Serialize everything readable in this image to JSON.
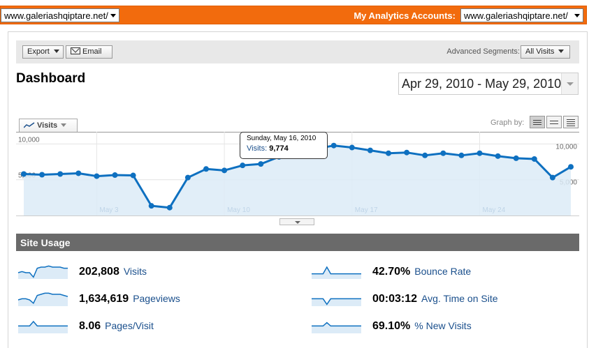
{
  "topbar": {
    "site_select": "www.galeriashqiptare.net/",
    "accounts_label": "My Analytics Accounts:",
    "accounts_select": "www.galeriashqiptare.net/"
  },
  "toolbar": {
    "export_label": "Export",
    "email_label": "Email",
    "segments_label": "Advanced Segments:",
    "segments_value": "All Visits"
  },
  "page": {
    "title": "Dashboard",
    "date_range": "Apr 29, 2010 - May 29, 2010"
  },
  "graph": {
    "metric_tab": "Visits",
    "graph_by_label": "Graph by:",
    "tooltip": {
      "date": "Sunday, May 16, 2010",
      "metric": "Visits:",
      "value": "9,774"
    }
  },
  "chart_data": {
    "type": "area",
    "x": [
      "Apr 29",
      "Apr 30",
      "May 1",
      "May 2",
      "May 3",
      "May 4",
      "May 5",
      "May 6",
      "May 7",
      "May 8",
      "May 9",
      "May 10",
      "May 11",
      "May 12",
      "May 13",
      "May 14",
      "May 15",
      "May 16",
      "May 17",
      "May 18",
      "May 19",
      "May 20",
      "May 21",
      "May 22",
      "May 23",
      "May 24",
      "May 25",
      "May 26",
      "May 27",
      "May 28",
      "May 29"
    ],
    "series": [
      {
        "name": "Visits",
        "values": [
          5800,
          5700,
          5800,
          5900,
          5500,
          5650,
          5600,
          1350,
          1100,
          5300,
          6500,
          6300,
          7000,
          7200,
          8200,
          8600,
          9300,
          9774,
          9500,
          9100,
          8700,
          8800,
          8400,
          8700,
          8400,
          8700,
          8300,
          8000,
          7900,
          5300,
          6800
        ]
      }
    ],
    "ylim": [
      0,
      11500
    ],
    "y_ticks": [
      {
        "value": 10000,
        "label": "10,000"
      },
      {
        "value": 5000,
        "label": "5,000"
      }
    ],
    "x_ticks": [
      {
        "index": 4,
        "label": "May 3"
      },
      {
        "index": 11,
        "label": "May 10"
      },
      {
        "index": 18,
        "label": "May 17"
      },
      {
        "index": 25,
        "label": "May 24"
      }
    ],
    "line_color": "#0e70c0",
    "fill_color": "#dcebf7",
    "grid": true
  },
  "site_usage": {
    "header": "Site Usage",
    "stats": [
      {
        "value": "202,808",
        "label": "Visits",
        "spark": [
          5,
          6,
          5,
          5,
          1,
          9,
          10,
          10,
          11,
          10,
          10,
          10,
          9,
          9
        ]
      },
      {
        "value": "1,634,619",
        "label": "Pageviews",
        "spark": [
          5,
          6,
          6,
          5,
          2,
          9,
          10,
          11,
          11,
          10,
          10,
          10,
          9,
          8
        ]
      },
      {
        "value": "8.06",
        "label": "Pages/Visit",
        "spark": [
          6,
          6,
          6,
          6,
          10,
          6,
          6,
          6,
          6,
          6,
          6,
          6,
          6,
          6
        ]
      },
      {
        "value": "42.70%",
        "label": "Bounce Rate",
        "spark": [
          4,
          4,
          4,
          4,
          10,
          4,
          4,
          4,
          4,
          4,
          4,
          4,
          4,
          4
        ]
      },
      {
        "value": "00:03:12",
        "label": "Avg. Time on Site",
        "spark": [
          6,
          6,
          6,
          6,
          1,
          6,
          6,
          6,
          6,
          6,
          6,
          6,
          6,
          6
        ]
      },
      {
        "value": "69.10%",
        "label": "% New Visits",
        "spark": [
          6,
          6,
          6,
          6,
          9,
          6,
          6,
          6,
          6,
          6,
          6,
          6,
          6,
          6
        ]
      }
    ]
  }
}
